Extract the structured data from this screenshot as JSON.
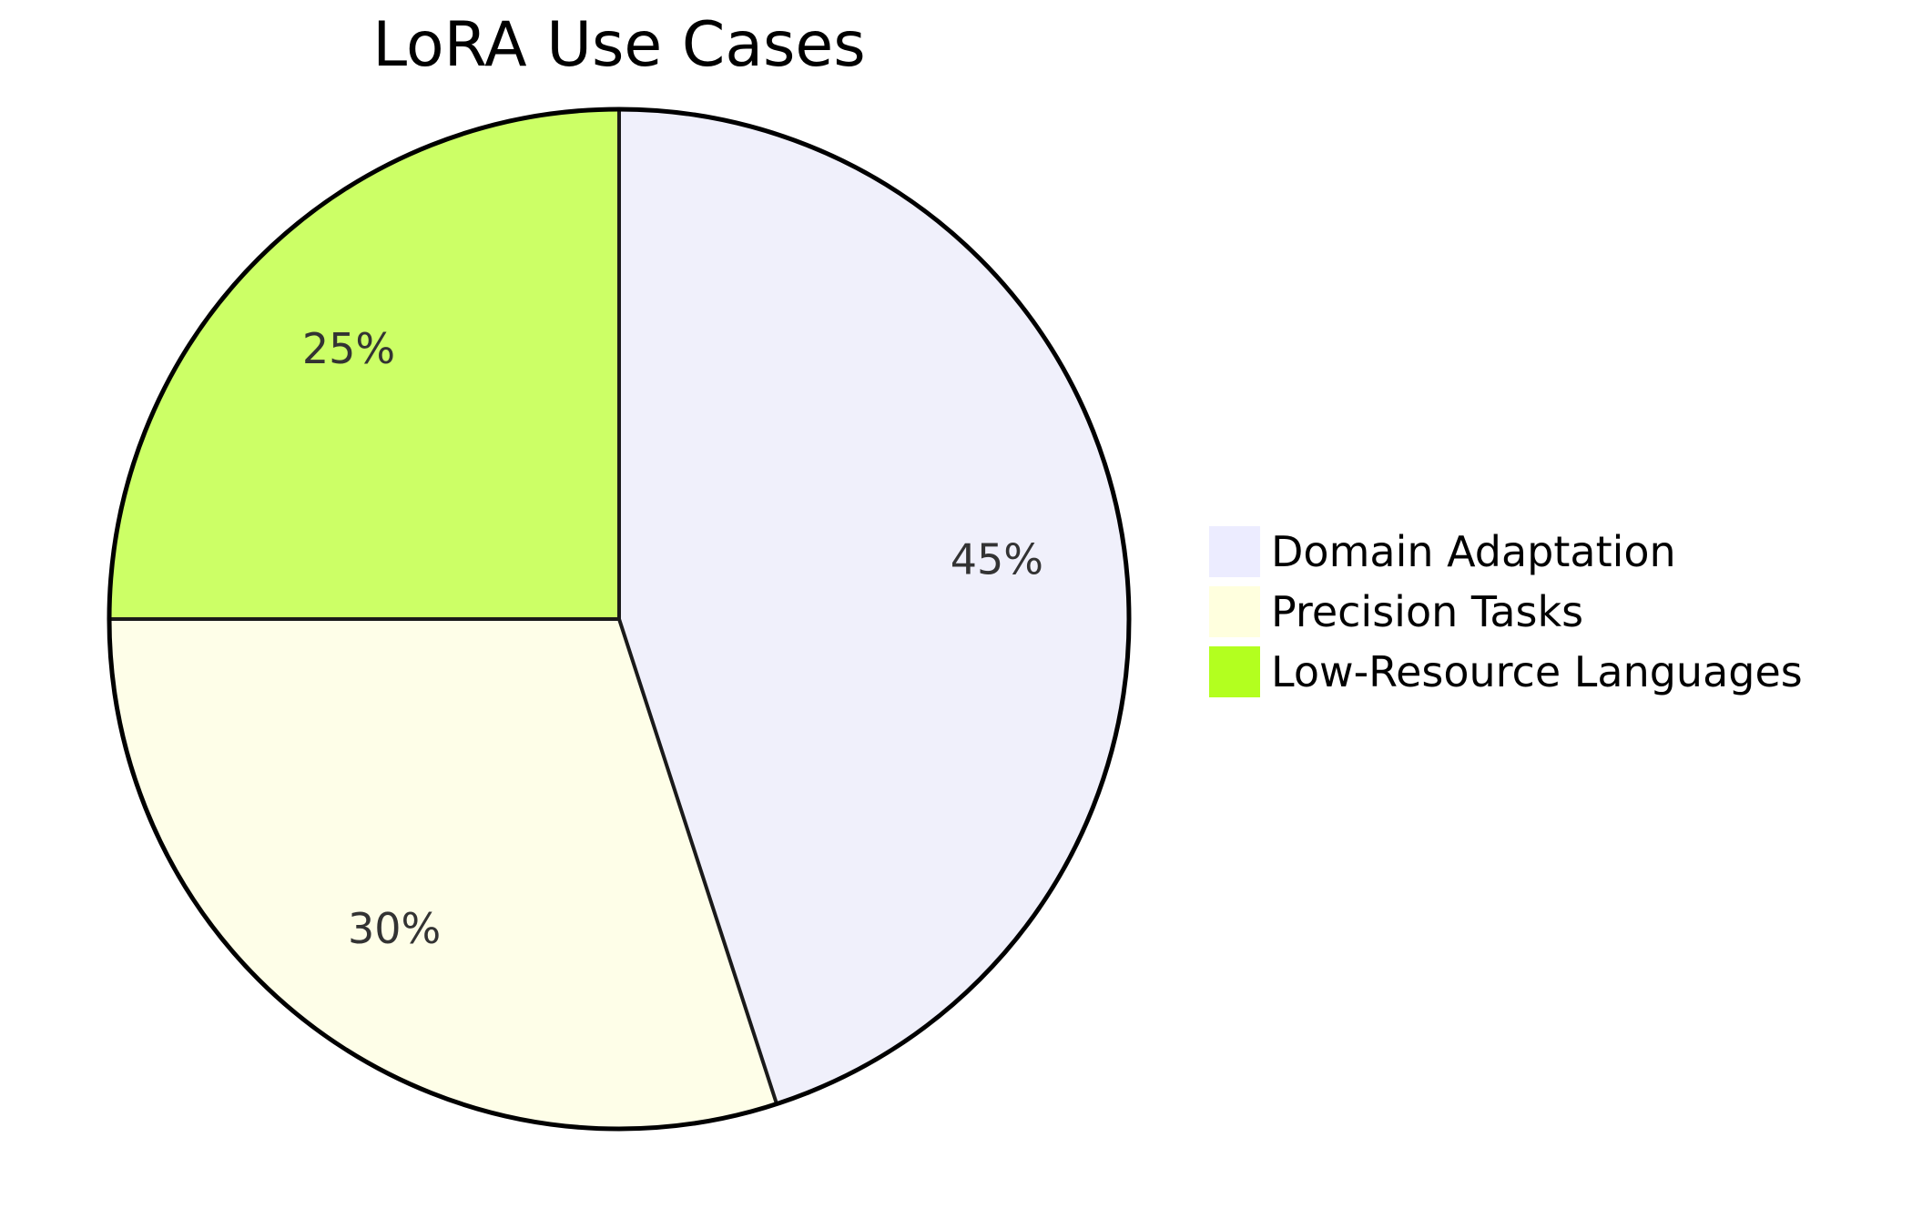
{
  "chart_data": {
    "type": "pie",
    "title": "LoRA Use Cases",
    "legend_position": "right",
    "slices": [
      {
        "name": "Domain Adaptation",
        "value": 45,
        "label": "45%",
        "color": "#f0f0fb"
      },
      {
        "name": "Precision Tasks",
        "value": 30,
        "label": "30%",
        "color": "#fefee8"
      },
      {
        "name": "Low-Resource Languages",
        "value": 25,
        "label": "25%",
        "color": "#ccff66"
      }
    ],
    "legend_colors": [
      "#ececff",
      "#ffffde",
      "#b3ff1f"
    ],
    "outline_color": "#000000",
    "divider_color": "#1a1a1a"
  }
}
